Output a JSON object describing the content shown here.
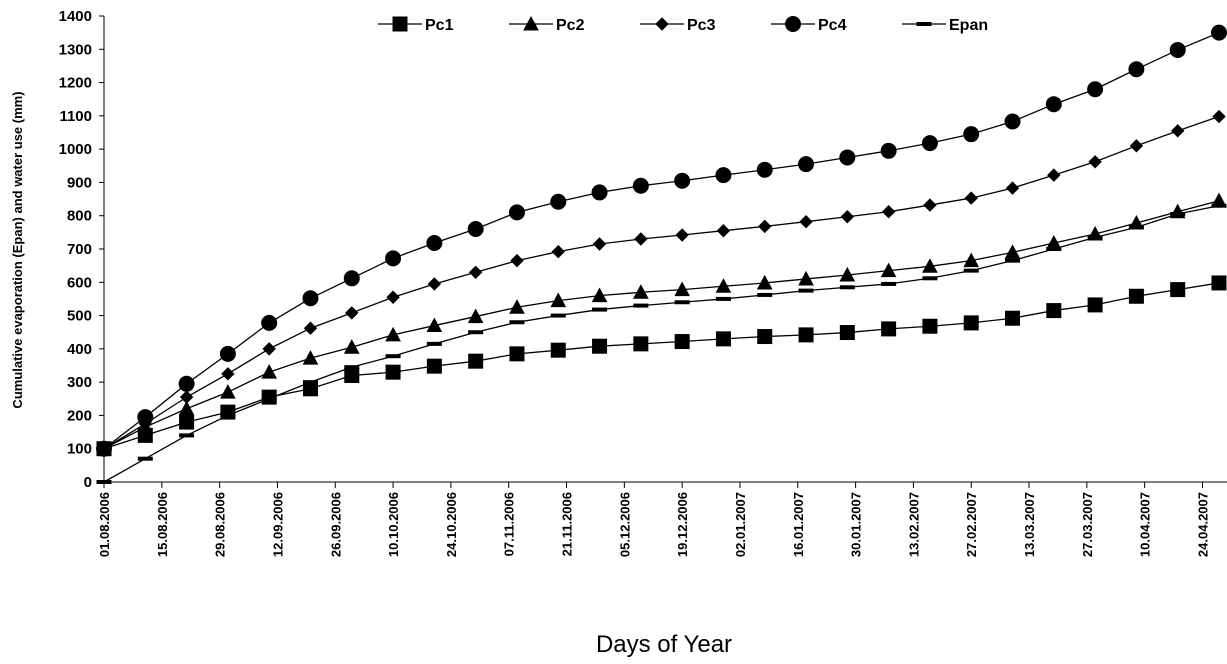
{
  "chart_data": {
    "type": "line",
    "x_label": "Days of Year",
    "y_label": "Cumulative evaporation (Epan) and  water use (mm)",
    "x": [
      "01.08.2006",
      "11.08.2006",
      "21.08.2006",
      "31.08.2006",
      "10.09.2006",
      "20.09.2006",
      "30.09.2006",
      "10.10.2006",
      "20.10.2006",
      "30.10.2006",
      "09.11.2006",
      "19.11.2006",
      "29.11.2006",
      "09.12.2006",
      "19.12.2006",
      "29.12.2006",
      "08.01.2007",
      "18.01.2007",
      "28.01.2007",
      "07.02.2007",
      "17.02.2007",
      "27.02.2007",
      "09.03.2007",
      "19.03.2007",
      "29.03.2007",
      "08.04.2007",
      "18.04.2007",
      "28.04.2007"
    ],
    "xlim": [
      "01.08.2006",
      "28.04.2007"
    ],
    "xticks": [
      "01.08.2006",
      "15.08.2006",
      "29.08.2006",
      "12.09.2006",
      "26.09.2006",
      "10.10.2006",
      "24.10.2006",
      "07.11.2006",
      "21.11.2006",
      "05.12.2006",
      "19.12.2006",
      "02.01.2007",
      "16.01.2007",
      "30.01.2007",
      "13.02.2007",
      "27.02.2007",
      "13.03.2007",
      "27.03.2007",
      "10.04.2007",
      "24.04.2007"
    ],
    "ylim": [
      0,
      1400
    ],
    "yticks": [
      0,
      100,
      200,
      300,
      400,
      500,
      600,
      700,
      800,
      900,
      1000,
      1100,
      1200,
      1300,
      1400
    ],
    "legend": "top",
    "series": [
      {
        "name": "Pc1",
        "marker": "square",
        "color": "#000000",
        "values": [
          100,
          140,
          180,
          210,
          255,
          280,
          320,
          330,
          348,
          363,
          385,
          396,
          408,
          415,
          422,
          430,
          437,
          442,
          449,
          460,
          468,
          478,
          492,
          515,
          532,
          558,
          578,
          598
        ]
      },
      {
        "name": "Pc2",
        "marker": "triangle",
        "color": "#000000",
        "values": [
          100,
          165,
          220,
          270,
          330,
          372,
          405,
          442,
          470,
          497,
          525,
          545,
          560,
          570,
          578,
          588,
          598,
          610,
          622,
          635,
          648,
          665,
          690,
          718,
          745,
          778,
          812,
          845
        ]
      },
      {
        "name": "Pc3",
        "marker": "diamond",
        "color": "#000000",
        "values": [
          100,
          175,
          255,
          325,
          400,
          462,
          508,
          555,
          595,
          630,
          665,
          692,
          715,
          730,
          742,
          755,
          768,
          782,
          797,
          812,
          832,
          853,
          883,
          922,
          962,
          1010,
          1055,
          1098
        ]
      },
      {
        "name": "Pc4",
        "marker": "circle",
        "color": "#000000",
        "values": [
          100,
          195,
          295,
          385,
          478,
          552,
          612,
          672,
          718,
          760,
          810,
          842,
          870,
          890,
          905,
          922,
          938,
          955,
          975,
          995,
          1018,
          1045,
          1083,
          1135,
          1180,
          1240,
          1298,
          1350
        ]
      },
      {
        "name": "Epan",
        "marker": "dash",
        "color": "#000000",
        "values": [
          0,
          70,
          140,
          200,
          250,
          300,
          345,
          378,
          415,
          450,
          480,
          500,
          518,
          530,
          540,
          550,
          562,
          575,
          585,
          595,
          612,
          635,
          665,
          700,
          735,
          765,
          805,
          830
        ]
      }
    ]
  }
}
